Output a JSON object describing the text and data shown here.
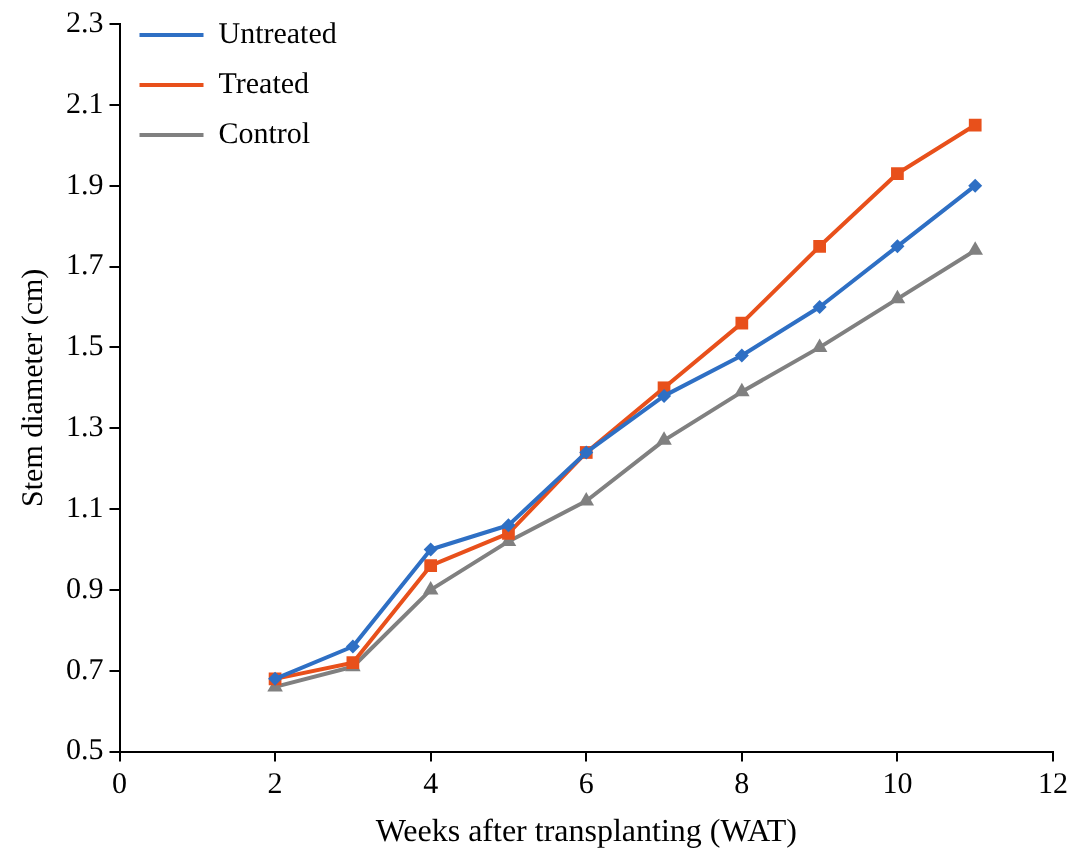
{
  "chart_data": {
    "type": "line",
    "xlabel": "Weeks after transplanting (WAT)",
    "ylabel": "Stem diameter (cm)",
    "x": [
      2,
      3,
      4,
      5,
      6,
      7,
      8,
      9,
      10,
      11
    ],
    "xlim": [
      0,
      12
    ],
    "xticks": [
      0,
      2,
      4,
      6,
      8,
      10,
      12
    ],
    "ylim": [
      0.5,
      2.3
    ],
    "yticks": [
      {
        "value": 0.5,
        "label": "0.5"
      },
      {
        "value": 0.7,
        "label": "0.7"
      },
      {
        "value": 0.9,
        "label": "0.9"
      },
      {
        "value": 1.1,
        "label": "1.1"
      },
      {
        "value": 1.3,
        "label": "1.3"
      },
      {
        "value": 1.5,
        "label": "1.5"
      },
      {
        "value": 1.7,
        "label": "1.7"
      },
      {
        "value": 1.9,
        "label": "1.9"
      },
      {
        "value": 2.1,
        "label": "2.1"
      },
      {
        "value": 2.3,
        "label": "2.3"
      }
    ],
    "grid": false,
    "legend": "top left",
    "line_style": "solid",
    "series": [
      {
        "name": "Untreated",
        "color": "#2e6fc4",
        "marker": "diamond",
        "values": [
          0.68,
          0.76,
          1.0,
          1.06,
          1.24,
          1.38,
          1.48,
          1.6,
          1.75,
          1.9
        ]
      },
      {
        "name": "Treated",
        "color": "#e8501b",
        "marker": "square",
        "values": [
          0.68,
          0.72,
          0.96,
          1.04,
          1.24,
          1.4,
          1.56,
          1.75,
          1.93,
          2.05
        ]
      },
      {
        "name": "Control",
        "color": "#808080",
        "marker": "triangle",
        "values": [
          0.66,
          0.71,
          0.9,
          1.02,
          1.12,
          1.27,
          1.39,
          1.5,
          1.62,
          1.74
        ]
      }
    ]
  }
}
